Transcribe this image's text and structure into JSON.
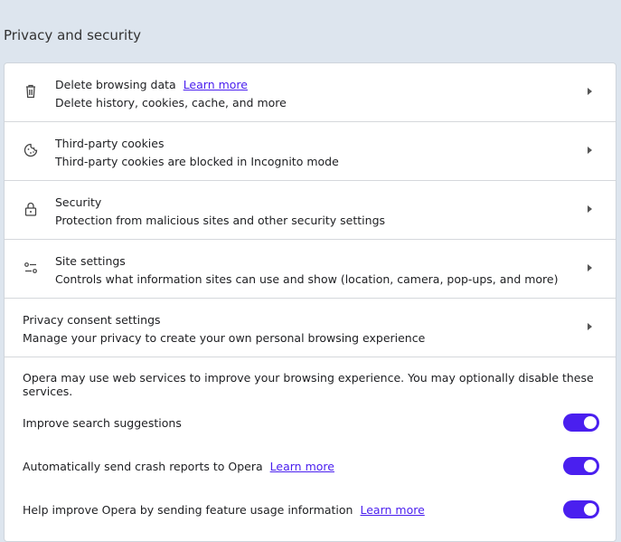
{
  "section_title": "Privacy and security",
  "rows": [
    {
      "icon": "trash-icon",
      "title": "Delete browsing data",
      "link": "Learn more",
      "subtitle": "Delete history, cookies, cache, and more"
    },
    {
      "icon": "cookie-icon",
      "title": "Third-party cookies",
      "subtitle": "Third-party cookies are blocked in Incognito mode"
    },
    {
      "icon": "lock-icon",
      "title": "Security",
      "subtitle": "Protection from malicious sites and other security settings"
    },
    {
      "icon": "sliders-icon",
      "title": "Site settings",
      "subtitle": "Controls what information sites can use and show (location, camera, pop-ups, and more)"
    },
    {
      "title": "Privacy consent settings",
      "subtitle": "Manage your privacy to create your own personal browsing experience"
    }
  ],
  "info": "Opera may use web services to improve your browsing experience. You may optionally disable these services.",
  "toggles": [
    {
      "label": "Improve search suggestions",
      "on": true
    },
    {
      "label": "Automatically send crash reports to Opera",
      "link": "Learn more",
      "on": true
    },
    {
      "label": "Help improve Opera by sending feature usage information",
      "link": "Learn more",
      "on": true
    }
  ],
  "accent": "#4a1fef"
}
